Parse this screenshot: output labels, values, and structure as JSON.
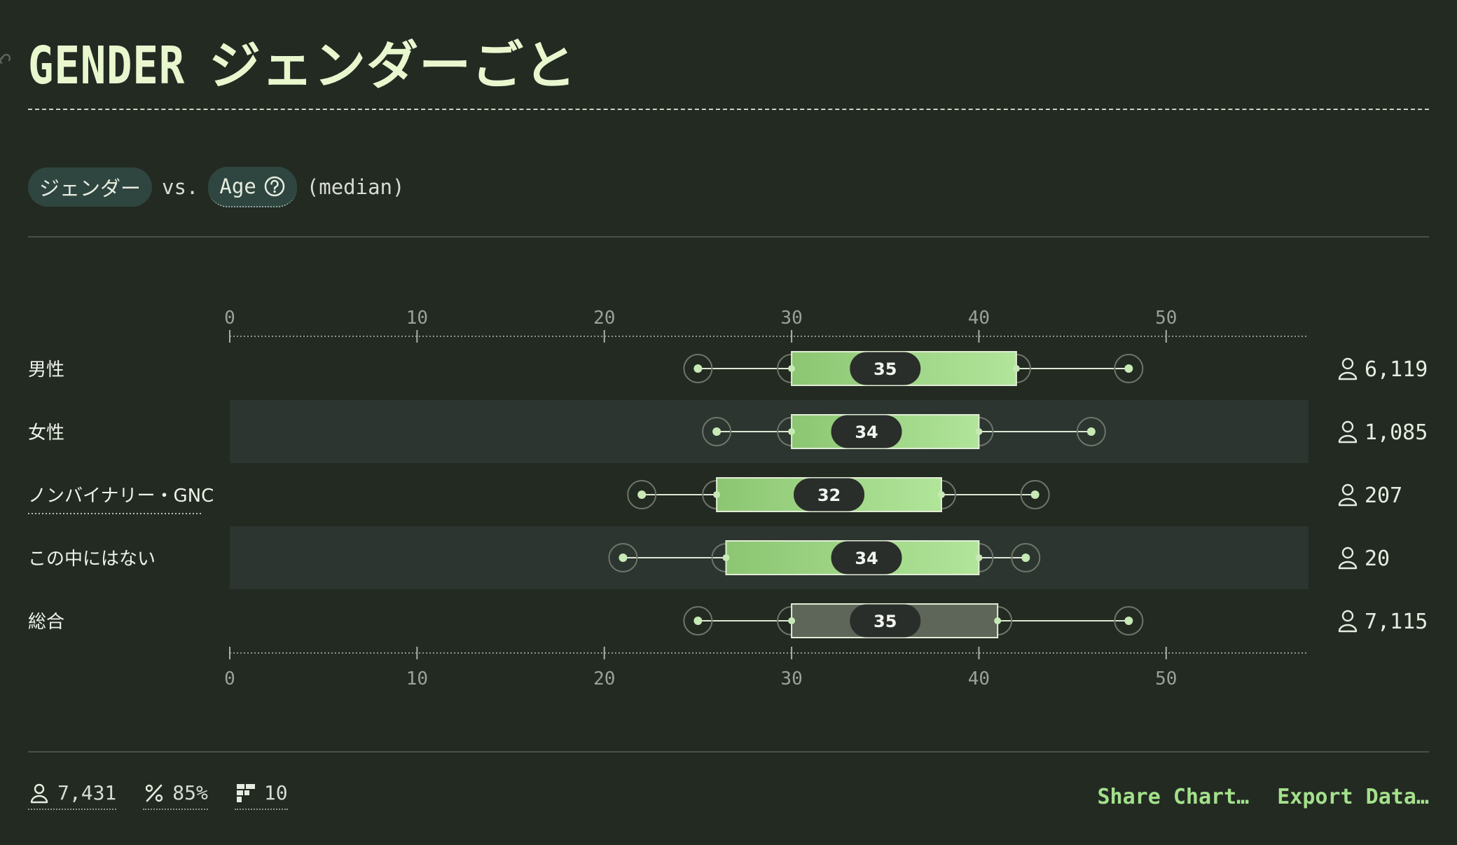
{
  "title": {
    "en": "GENDER",
    "jp": "ジェンダーごと"
  },
  "query": {
    "dimension": "ジェンダー",
    "vs": "vs.",
    "metric": "Age",
    "aggregation": "(median)"
  },
  "chart_data": {
    "type": "boxplot",
    "xlim": [
      0,
      57.6
    ],
    "ticks": [
      0,
      10,
      20,
      30,
      40,
      50
    ],
    "rows": [
      {
        "label": "男性",
        "whisker_low": 25,
        "q1": 30,
        "median": 35,
        "q3": 42,
        "whisker_high": 48,
        "count": "6,119",
        "shaded": false,
        "overall": false
      },
      {
        "label": "女性",
        "whisker_low": 26,
        "q1": 30,
        "median": 34,
        "q3": 40,
        "whisker_high": 46,
        "count": "1,085",
        "shaded": true,
        "overall": false
      },
      {
        "label": "ノンバイナリー・GNC",
        "whisker_low": 22,
        "q1": 26,
        "median": 32,
        "q3": 38,
        "whisker_high": 43,
        "count": "207",
        "shaded": false,
        "overall": false,
        "dotted_underline": true
      },
      {
        "label": "この中にはない",
        "whisker_low": 21,
        "q1": 26.5,
        "median": 34,
        "q3": 40,
        "whisker_high": 42.5,
        "count": "20",
        "shaded": true,
        "overall": false
      },
      {
        "label": "総合",
        "whisker_low": 25,
        "q1": 30,
        "median": 35,
        "q3": 41,
        "whisker_high": 48,
        "count": "7,115",
        "shaded": false,
        "overall": true
      }
    ]
  },
  "footer": {
    "respondents": "7,431",
    "percent": "85%",
    "questions": "10",
    "share": "Share Chart…",
    "export": "Export Data…"
  },
  "colors": {
    "background": "#232a22",
    "title": "#e9f7cf",
    "box_light": "#b1e59a",
    "box_dark": "#8cc672",
    "overall_box": "#5e6559",
    "shaded_row": "#2c3530",
    "accent": "#a3e08b"
  }
}
